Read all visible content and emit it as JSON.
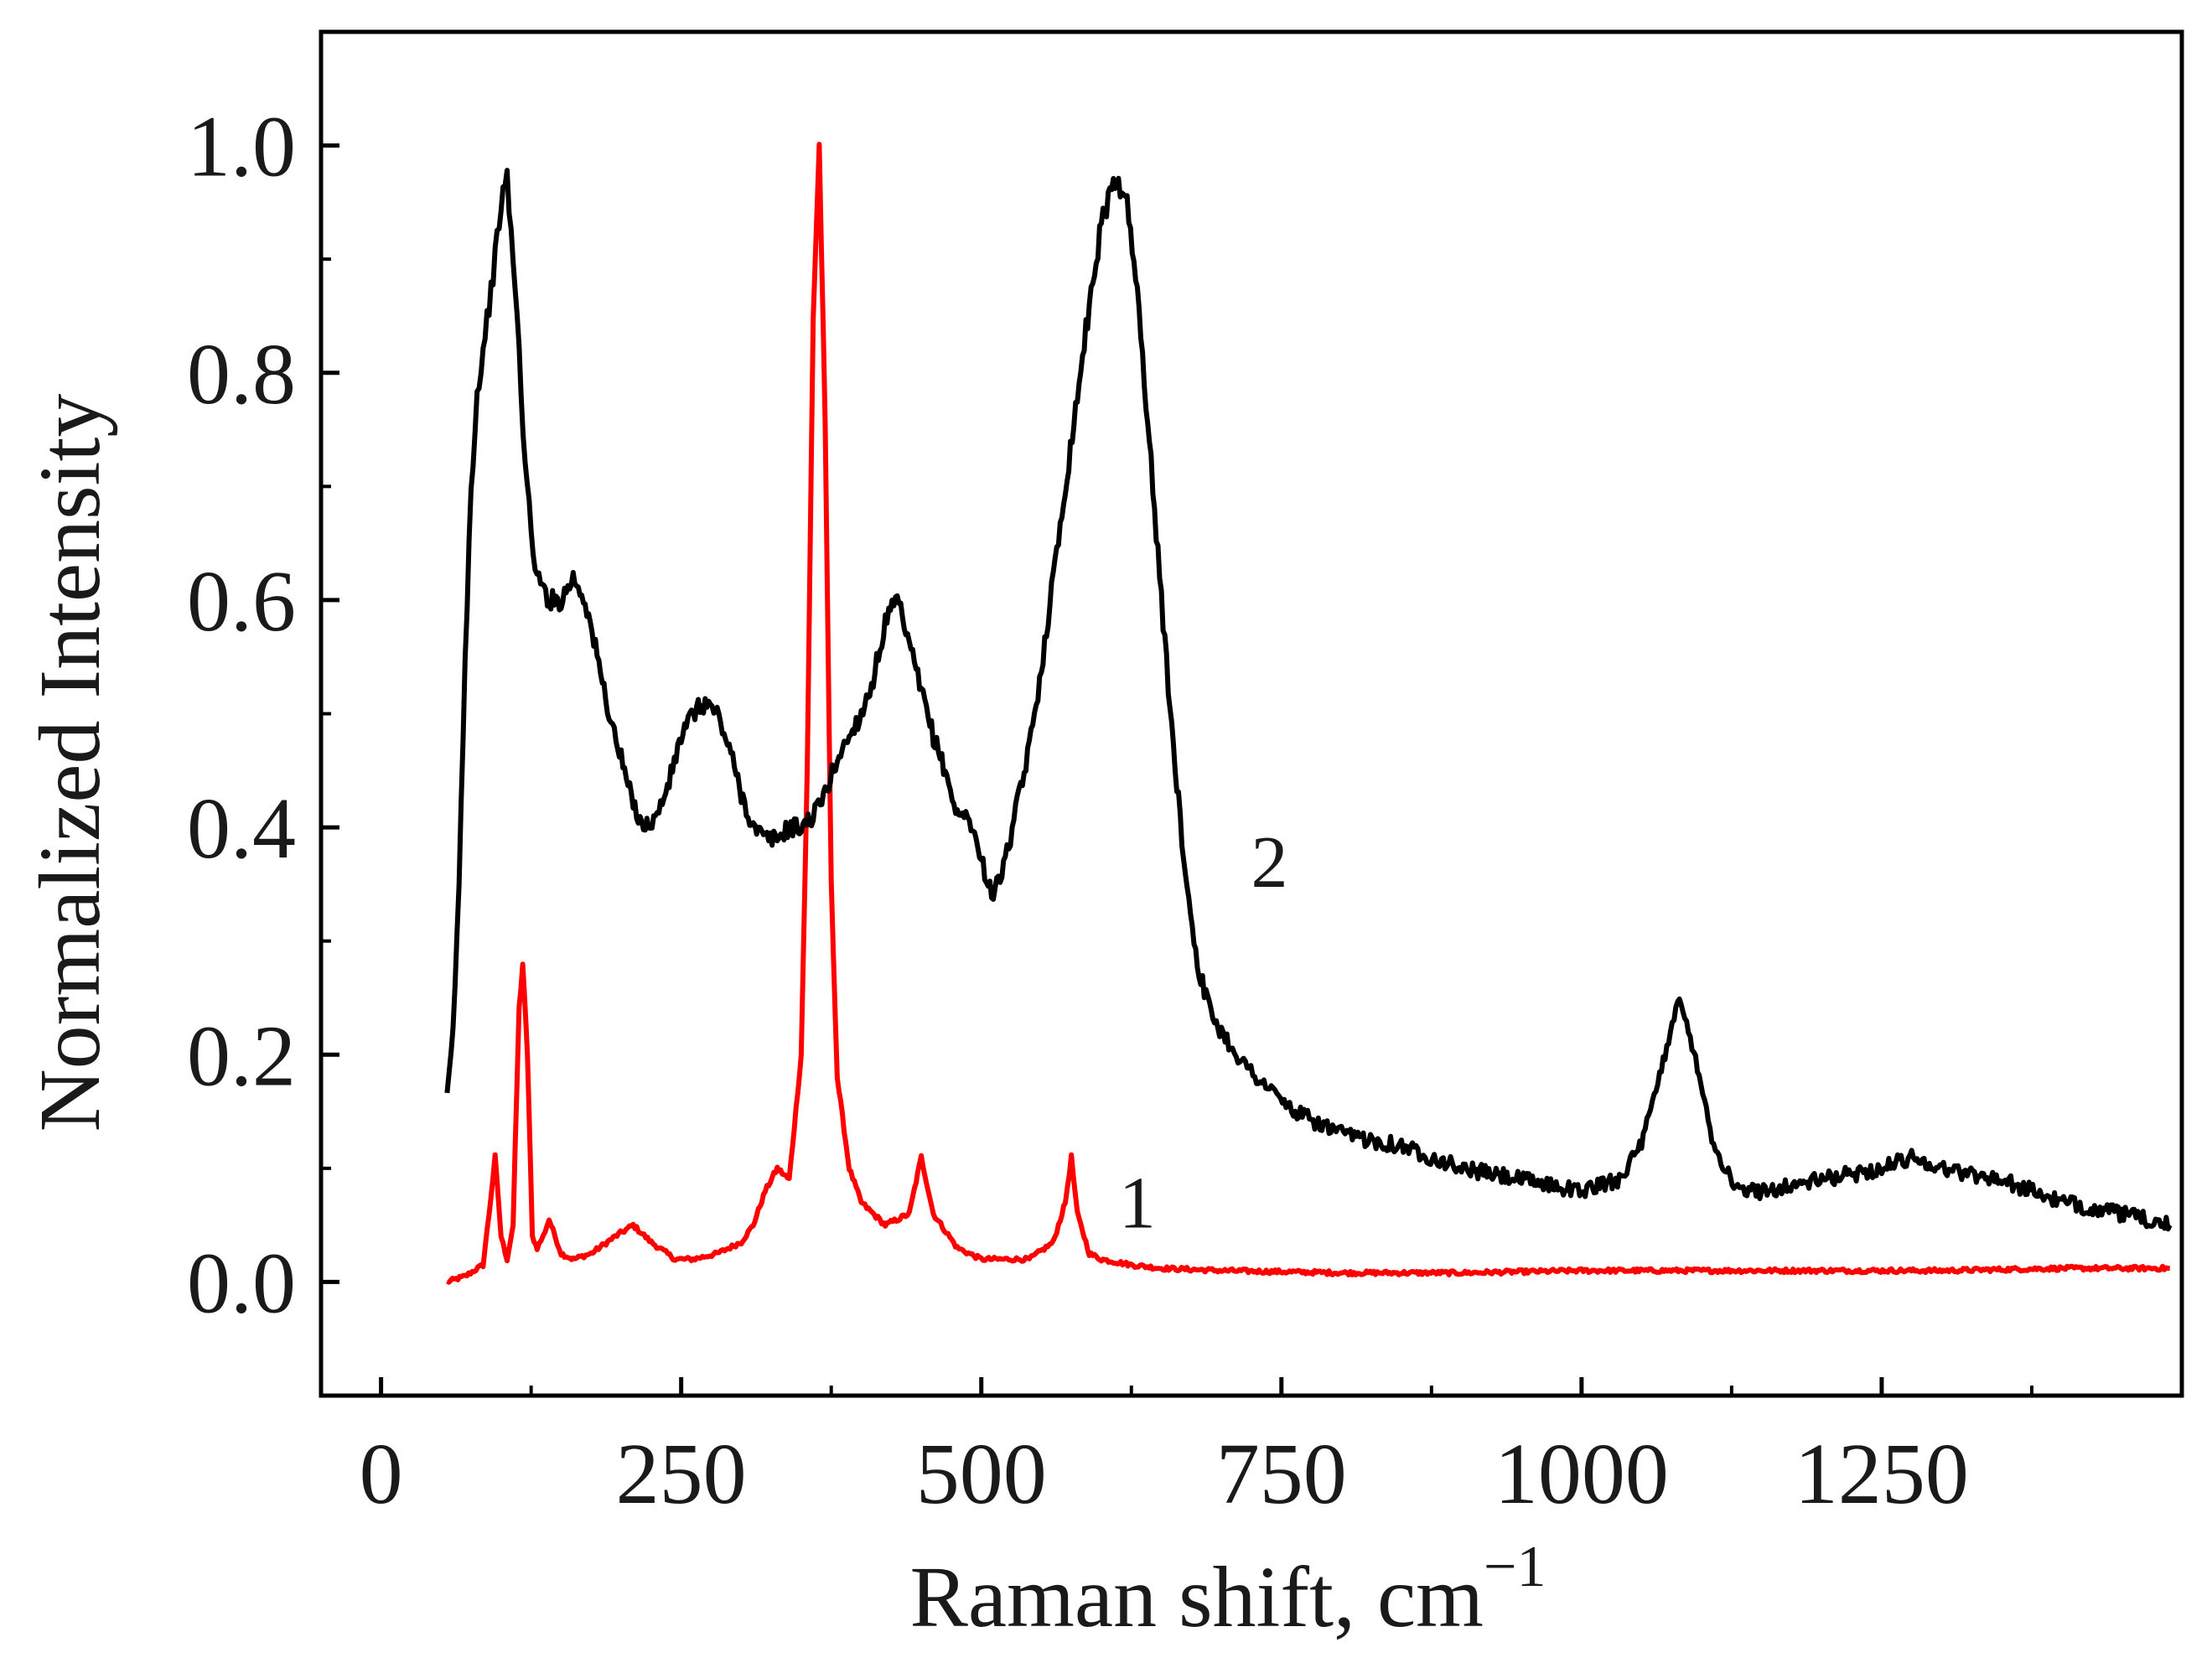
{
  "chart_data": {
    "type": "line",
    "xlabel": "Raman shift, cm",
    "xlabel_superscript": "−1",
    "ylabel": "Normalized Intensity",
    "xlim": [
      -50,
      1500
    ],
    "ylim": [
      -0.1,
      1.1
    ],
    "xticks": [
      0,
      250,
      500,
      750,
      1000,
      1250
    ],
    "xtick_labels": [
      "0",
      "250",
      "500",
      "750",
      "1000",
      "1250"
    ],
    "yticks": [
      0.0,
      0.2,
      0.4,
      0.6,
      0.8,
      1.0
    ],
    "ytick_labels": [
      "0.0",
      "0.2",
      "0.4",
      "0.6",
      "0.8",
      "1.0"
    ],
    "grid": false,
    "series": [
      {
        "name": "1",
        "color": "#ff0000",
        "x": [
          55,
          70,
          85,
          90,
          95,
          100,
          105,
          110,
          115,
          118,
          122,
          126,
          130,
          135,
          140,
          145,
          150,
          160,
          175,
          195,
          210,
          225,
          245,
          260,
          280,
          300,
          310,
          320,
          330,
          340,
          350,
          355,
          360,
          365,
          370,
          375,
          380,
          390,
          400,
          420,
          440,
          450,
          460,
          480,
          500,
          520,
          540,
          560,
          570,
          575,
          580,
          590,
          600,
          625,
          650,
          700,
          800,
          900,
          1000,
          1100,
          1200,
          1300,
          1400,
          1490
        ],
        "values": [
          0.0,
          0.005,
          0.015,
          0.06,
          0.11,
          0.04,
          0.02,
          0.05,
          0.24,
          0.28,
          0.2,
          0.04,
          0.03,
          0.04,
          0.055,
          0.04,
          0.025,
          0.02,
          0.025,
          0.04,
          0.05,
          0.035,
          0.02,
          0.02,
          0.025,
          0.035,
          0.05,
          0.08,
          0.1,
          0.09,
          0.2,
          0.45,
          0.85,
          1.0,
          0.75,
          0.35,
          0.18,
          0.1,
          0.07,
          0.05,
          0.06,
          0.11,
          0.06,
          0.03,
          0.02,
          0.02,
          0.02,
          0.035,
          0.07,
          0.11,
          0.06,
          0.025,
          0.02,
          0.015,
          0.012,
          0.01,
          0.008,
          0.008,
          0.01,
          0.01,
          0.01,
          0.01,
          0.012,
          0.012
        ]
      },
      {
        "name": "2",
        "color": "#000000",
        "x": [
          55,
          60,
          65,
          70,
          75,
          80,
          85,
          90,
          95,
          100,
          105,
          110,
          115,
          120,
          125,
          130,
          140,
          150,
          160,
          170,
          180,
          190,
          200,
          210,
          220,
          230,
          240,
          250,
          260,
          270,
          280,
          290,
          300,
          310,
          320,
          330,
          340,
          350,
          360,
          370,
          380,
          390,
          400,
          410,
          420,
          430,
          440,
          450,
          460,
          470,
          480,
          490,
          500,
          510,
          520,
          530,
          540,
          550,
          560,
          570,
          580,
          590,
          600,
          610,
          620,
          630,
          640,
          650,
          660,
          670,
          680,
          690,
          700,
          720,
          740,
          760,
          800,
          850,
          900,
          950,
          1000,
          1030,
          1050,
          1065,
          1080,
          1095,
          1110,
          1130,
          1150,
          1200,
          1250,
          1275,
          1300,
          1350,
          1400,
          1450,
          1490
        ],
        "values": [
          0.16,
          0.22,
          0.35,
          0.55,
          0.7,
          0.78,
          0.82,
          0.86,
          0.9,
          0.95,
          0.97,
          0.9,
          0.82,
          0.72,
          0.66,
          0.62,
          0.6,
          0.6,
          0.62,
          0.6,
          0.55,
          0.5,
          0.46,
          0.42,
          0.4,
          0.41,
          0.44,
          0.48,
          0.5,
          0.51,
          0.5,
          0.47,
          0.43,
          0.4,
          0.39,
          0.39,
          0.4,
          0.4,
          0.41,
          0.43,
          0.46,
          0.48,
          0.5,
          0.53,
          0.58,
          0.6,
          0.56,
          0.52,
          0.48,
          0.45,
          0.41,
          0.41,
          0.37,
          0.34,
          0.37,
          0.42,
          0.47,
          0.54,
          0.62,
          0.7,
          0.78,
          0.86,
          0.93,
          0.97,
          0.96,
          0.87,
          0.74,
          0.6,
          0.47,
          0.36,
          0.28,
          0.24,
          0.22,
          0.19,
          0.17,
          0.15,
          0.13,
          0.12,
          0.1,
          0.09,
          0.08,
          0.09,
          0.12,
          0.18,
          0.25,
          0.2,
          0.12,
          0.08,
          0.08,
          0.09,
          0.1,
          0.11,
          0.1,
          0.09,
          0.07,
          0.06,
          0.05
        ]
      }
    ],
    "annotations": [
      {
        "text": "1",
        "x": 630,
        "y": 0.07
      },
      {
        "text": "2",
        "x": 740,
        "y": 0.37
      }
    ]
  }
}
